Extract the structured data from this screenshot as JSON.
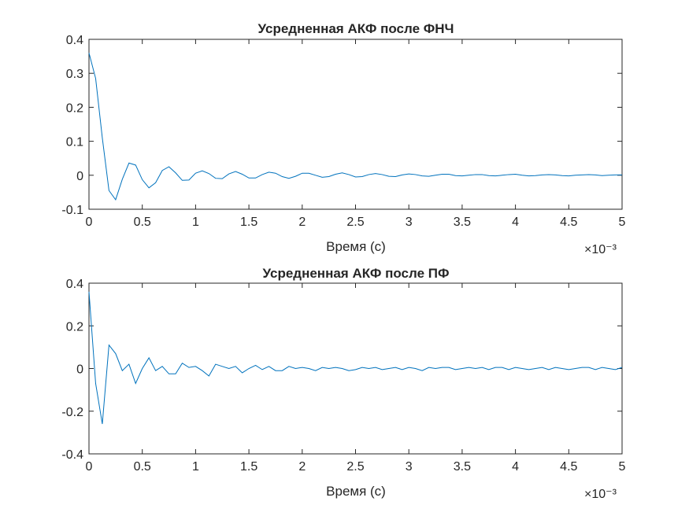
{
  "chart_data": [
    {
      "type": "line",
      "title": "Усредненная АКФ после ФНЧ",
      "xlabel": "Время (с)",
      "ylabel": "",
      "x_exponent_label": "×10⁻³",
      "xlim": [
        0,
        0.005
      ],
      "ylim": [
        -0.1,
        0.4
      ],
      "x_ticks": [
        0,
        0.0005,
        0.001,
        0.0015,
        0.002,
        0.0025,
        0.003,
        0.0035,
        0.004,
        0.0045,
        0.005
      ],
      "x_tick_labels": [
        "0",
        "0.5",
        "1",
        "1.5",
        "2",
        "2.5",
        "3",
        "3.5",
        "4",
        "4.5",
        "5"
      ],
      "y_ticks": [
        -0.1,
        0,
        0.1,
        0.2,
        0.3,
        0.4
      ],
      "y_tick_labels": [
        "-0.1",
        "0",
        "0.1",
        "0.2",
        "0.3",
        "0.4"
      ],
      "grid": false,
      "color": "#0072BD",
      "series": [
        {
          "x": [
            0,
            6.25e-05,
            0.000125,
            0.0001875,
            0.00025,
            0.0003125,
            0.000375,
            0.0004375,
            0.0005,
            0.0005625,
            0.000625,
            0.0006875,
            0.00075,
            0.0008125,
            0.000875,
            0.0009375,
            0.001,
            0.0010625,
            0.001125,
            0.0011875,
            0.00125,
            0.0013125,
            0.001375,
            0.0014375,
            0.0015,
            0.0015625,
            0.001625,
            0.0016875,
            0.00175,
            0.0018125,
            0.001875,
            0.0019375,
            0.002,
            0.0020625,
            0.002125,
            0.0021875,
            0.00225,
            0.0023125,
            0.002375,
            0.0024375,
            0.0025,
            0.0025625,
            0.002625,
            0.0026875,
            0.00275,
            0.0028125,
            0.002875,
            0.0029375,
            0.003,
            0.0030625,
            0.003125,
            0.0031875,
            0.00325,
            0.0033125,
            0.003375,
            0.0034375,
            0.0035,
            0.0035625,
            0.003625,
            0.0036875,
            0.00375,
            0.0038125,
            0.003875,
            0.0039375,
            0.004,
            0.0040625,
            0.004125,
            0.0041875,
            0.00425,
            0.0043125,
            0.004375,
            0.0044375,
            0.0045,
            0.0045625,
            0.004625,
            0.0046875,
            0.00475,
            0.0048125,
            0.004875,
            0.0049375,
            0.005
          ],
          "y": [
            0.36,
            0.285,
            0.11,
            -0.045,
            -0.072,
            -0.012,
            0.036,
            0.03,
            -0.013,
            -0.037,
            -0.022,
            0.014,
            0.025,
            0.007,
            -0.015,
            -0.014,
            0.006,
            0.013,
            0.005,
            -0.009,
            -0.01,
            0.004,
            0.011,
            0.003,
            -0.008,
            -0.008,
            0.002,
            0.009,
            0.006,
            -0.004,
            -0.009,
            -0.003,
            0.006,
            0.006,
            0.0,
            -0.006,
            -0.004,
            0.003,
            0.007,
            0.002,
            -0.005,
            -0.004,
            0.002,
            0.005,
            0.002,
            -0.003,
            -0.004,
            0.001,
            0.004,
            0.002,
            -0.002,
            -0.003,
            0.0,
            0.003,
            0.003,
            -0.001,
            -0.002,
            0.0,
            0.002,
            0.002,
            -0.001,
            -0.002,
            0.0,
            0.002,
            0.003,
            0.0,
            -0.002,
            -0.001,
            0.001,
            0.002,
            0.001,
            -0.001,
            -0.002,
            0.0,
            0.001,
            0.002,
            0.001,
            -0.001,
            0.0,
            0.001,
            0.001
          ]
        }
      ]
    },
    {
      "type": "line",
      "title": "Усредненная АКФ после ПФ",
      "xlabel": "Время (с)",
      "ylabel": "",
      "x_exponent_label": "×10⁻³",
      "xlim": [
        0,
        0.005
      ],
      "ylim": [
        -0.4,
        0.4
      ],
      "x_ticks": [
        0,
        0.0005,
        0.001,
        0.0015,
        0.002,
        0.0025,
        0.003,
        0.0035,
        0.004,
        0.0045,
        0.005
      ],
      "x_tick_labels": [
        "0",
        "0.5",
        "1",
        "1.5",
        "2",
        "2.5",
        "3",
        "3.5",
        "4",
        "4.5",
        "5"
      ],
      "y_ticks": [
        -0.4,
        -0.2,
        0,
        0.2,
        0.4
      ],
      "y_tick_labels": [
        "-0.4",
        "-0.2",
        "0",
        "0.2",
        "0.4"
      ],
      "grid": false,
      "color": "#0072BD",
      "series": [
        {
          "x": [
            0,
            6.25e-05,
            0.000125,
            0.0001875,
            0.00025,
            0.0003125,
            0.000375,
            0.0004375,
            0.0005,
            0.0005625,
            0.000625,
            0.0006875,
            0.00075,
            0.0008125,
            0.000875,
            0.0009375,
            0.001,
            0.0010625,
            0.001125,
            0.0011875,
            0.00125,
            0.0013125,
            0.001375,
            0.0014375,
            0.0015,
            0.0015625,
            0.001625,
            0.0016875,
            0.00175,
            0.0018125,
            0.001875,
            0.0019375,
            0.002,
            0.0020625,
            0.002125,
            0.0021875,
            0.00225,
            0.0023125,
            0.002375,
            0.0024375,
            0.0025,
            0.0025625,
            0.002625,
            0.0026875,
            0.00275,
            0.0028125,
            0.002875,
            0.0029375,
            0.003,
            0.0030625,
            0.003125,
            0.0031875,
            0.00325,
            0.0033125,
            0.003375,
            0.0034375,
            0.0035,
            0.0035625,
            0.003625,
            0.0036875,
            0.00375,
            0.0038125,
            0.003875,
            0.0039375,
            0.004,
            0.0040625,
            0.004125,
            0.0041875,
            0.00425,
            0.0043125,
            0.004375,
            0.0044375,
            0.0045,
            0.0045625,
            0.004625,
            0.0046875,
            0.00475,
            0.0048125,
            0.004875,
            0.0049375,
            0.005
          ],
          "y": [
            0.36,
            -0.07,
            -0.26,
            0.11,
            0.07,
            -0.01,
            0.02,
            -0.07,
            0.0,
            0.05,
            -0.01,
            0.01,
            -0.025,
            -0.025,
            0.025,
            0.005,
            0.01,
            -0.01,
            -0.035,
            0.02,
            0.01,
            0.0,
            0.01,
            -0.02,
            0.0,
            0.015,
            -0.005,
            0.01,
            -0.01,
            -0.01,
            0.01,
            0.0,
            0.005,
            0.0,
            -0.01,
            0.005,
            0.0,
            0.005,
            0.0,
            -0.01,
            -0.005,
            0.005,
            0.0,
            0.005,
            -0.005,
            0.0,
            0.005,
            -0.005,
            0.005,
            0.0,
            -0.01,
            0.005,
            0.0,
            0.005,
            0.005,
            -0.005,
            0.0,
            0.005,
            0.0,
            0.005,
            -0.005,
            0.005,
            0.005,
            -0.005,
            0.005,
            0.0,
            -0.005,
            0.0,
            0.005,
            -0.005,
            0.005,
            0.0,
            -0.005,
            0.0,
            0.005,
            0.005,
            -0.005,
            0.005,
            0.0,
            -0.005,
            0.005
          ]
        }
      ]
    }
  ]
}
